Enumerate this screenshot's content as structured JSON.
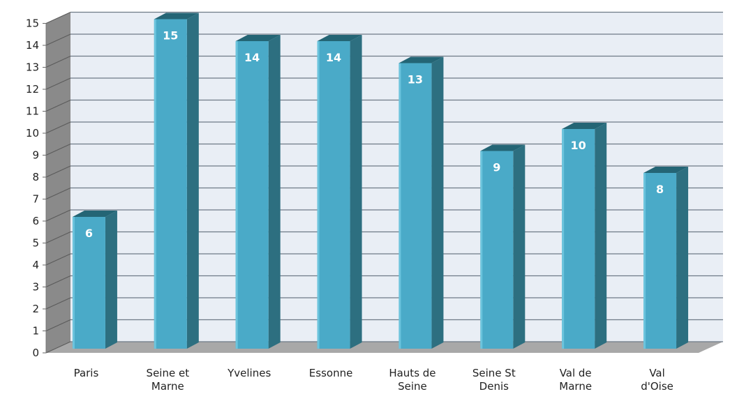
{
  "chart_data": {
    "type": "bar",
    "style": "3d-column",
    "categories": [
      [
        "Paris"
      ],
      [
        "Seine et",
        "Marne"
      ],
      [
        "Yvelines"
      ],
      [
        "Essonne"
      ],
      [
        "Hauts de",
        "Seine"
      ],
      [
        "Seine St",
        "Denis"
      ],
      [
        "Val de",
        "Marne"
      ],
      [
        "Val",
        "d'Oise"
      ]
    ],
    "values": [
      6,
      15,
      14,
      14,
      13,
      9,
      10,
      8
    ],
    "data_labels": [
      "6",
      "15",
      "14",
      "14",
      "13",
      "9",
      "10",
      "8"
    ],
    "ylim": [
      0,
      15
    ],
    "yticks": [
      0,
      1,
      2,
      3,
      4,
      5,
      6,
      7,
      8,
      9,
      10,
      11,
      12,
      13,
      14,
      15
    ],
    "grid": true,
    "title": "",
    "xlabel": "",
    "ylabel": "",
    "colors": {
      "bar_front": "#4aaac8",
      "bar_side": "#2d6f80",
      "bar_top": "#246575",
      "wall_back": "#e9eef5",
      "wall_side": "#8a8a8a",
      "floor": "#a8a8a8",
      "grid_line": "#6e7a86",
      "axis_text": "#222222"
    }
  }
}
